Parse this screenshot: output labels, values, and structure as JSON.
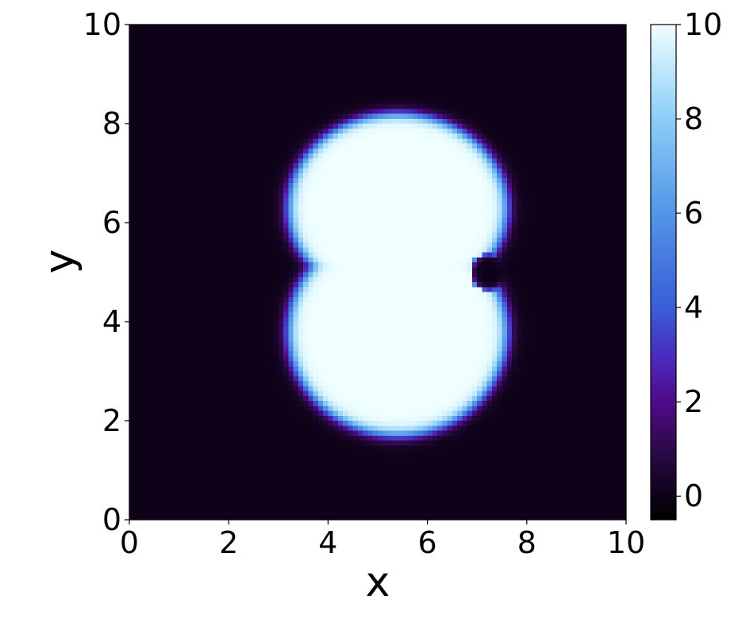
{
  "chart_data": {
    "type": "heatmap",
    "title": "",
    "xlabel": "x",
    "ylabel": "y",
    "xlim": [
      0,
      10
    ],
    "ylim": [
      0,
      10
    ],
    "x_ticks": [
      "0",
      "2",
      "4",
      "6",
      "8",
      "10"
    ],
    "y_ticks": [
      "0",
      "2",
      "4",
      "6",
      "8",
      "10"
    ],
    "colormap": "cool-blue (black → dark purple → blue → light blue → white)",
    "colormap_stops": [
      {
        "value": -0.5,
        "color": "#000000"
      },
      {
        "value": 0,
        "color": "#0e0218"
      },
      {
        "value": 1,
        "color": "#2d0a4a"
      },
      {
        "value": 2,
        "color": "#500a8a"
      },
      {
        "value": 3,
        "color": "#4a2ec0"
      },
      {
        "value": 4,
        "color": "#3a5ed6"
      },
      {
        "value": 6,
        "color": "#5296e8"
      },
      {
        "value": 8,
        "color": "#8ccef6"
      },
      {
        "value": 10,
        "color": "#f0ffff"
      }
    ],
    "colorbar": {
      "range": [
        -0.5,
        10
      ],
      "ticks": [
        "0",
        "2",
        "4",
        "6",
        "8",
        "10"
      ]
    },
    "field": {
      "grid_size": 100,
      "background_value": 0,
      "peak_value": 10,
      "shape": "kidney-shaped blob (union of two overlapping lobes, notch on right side)",
      "lobes": [
        {
          "center_x": 5.4,
          "center_y": 6.3,
          "radius_x": 2.2,
          "radius_y": 1.9
        },
        {
          "center_x": 5.4,
          "center_y": 3.8,
          "radius_x": 2.2,
          "radius_y": 2.1
        }
      ],
      "notch": {
        "center_x": 7.25,
        "center_y": 5.0,
        "depth": 0.4
      },
      "edge_width": 0.22
    }
  }
}
